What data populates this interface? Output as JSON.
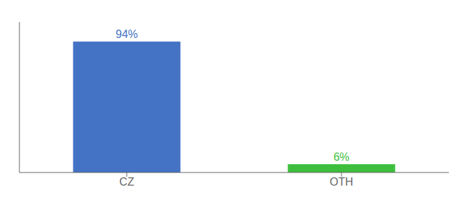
{
  "chart_data": {
    "type": "bar",
    "categories": [
      "CZ",
      "OTH"
    ],
    "values": [
      94,
      6
    ],
    "value_labels": [
      "94%",
      "6%"
    ],
    "colors": [
      "#4472c4",
      "#3dbf3d"
    ],
    "ylim": [
      0,
      108
    ],
    "yticks": [],
    "tick_labels": "x",
    "grid": false
  }
}
